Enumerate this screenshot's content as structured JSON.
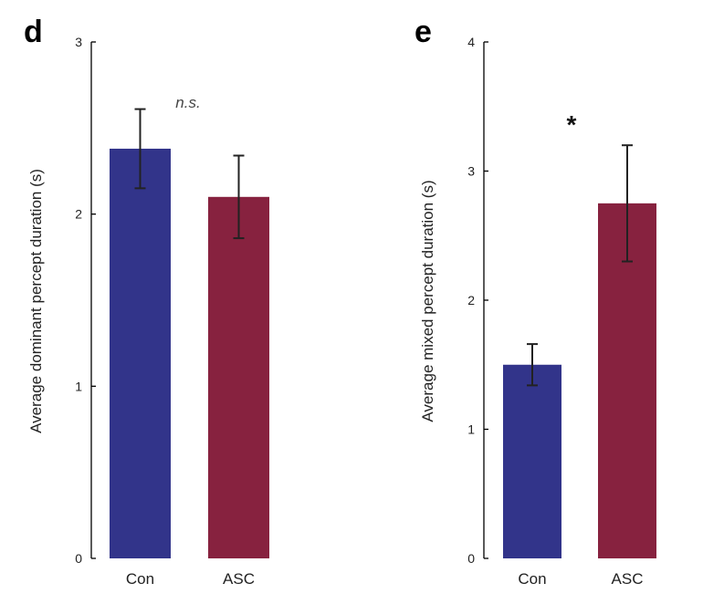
{
  "chart_data": [
    {
      "panel": "d",
      "type": "bar",
      "categories": [
        "Con",
        "ASC"
      ],
      "values": [
        2.38,
        2.1
      ],
      "error": [
        0.23,
        0.24
      ],
      "colors": [
        "#32348a",
        "#87223f"
      ],
      "ylabel": "Average dominant percept duration (s)",
      "ylim": [
        0,
        3
      ],
      "yticks": [
        0,
        1,
        2,
        3
      ],
      "annotation": "n.s."
    },
    {
      "panel": "e",
      "type": "bar",
      "categories": [
        "Con",
        "ASC"
      ],
      "values": [
        1.5,
        2.75
      ],
      "error": [
        0.16,
        0.45
      ],
      "colors": [
        "#32348a",
        "#87223f"
      ],
      "ylabel": "Average mixed percept duration (s)",
      "ylim": [
        0,
        4
      ],
      "yticks": [
        0,
        1,
        2,
        3,
        4
      ],
      "annotation": "*"
    }
  ]
}
